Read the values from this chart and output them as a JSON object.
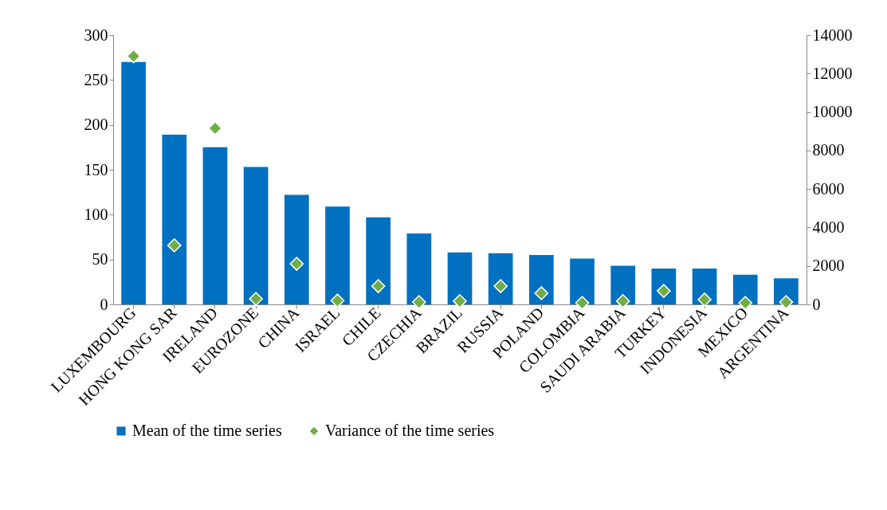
{
  "chart_data": {
    "type": "bar",
    "categories": [
      "LUXEMBOURG",
      "HONG KONG SAR",
      "IRELAND",
      "EUROZONE",
      "CHINA",
      "ISRAEL",
      "CHILE",
      "CZECHIA",
      "BRAZIL",
      "RUSSIA",
      "POLAND",
      "COLOMBIA",
      "SAUDI ARABIA",
      "TURKEY",
      "INDONESIA",
      "MEXICO",
      "ARGENTINA"
    ],
    "series": [
      {
        "name": "Mean of the time series",
        "color": "#0070c0",
        "values": [
          270,
          189,
          175,
          153,
          122,
          109,
          97,
          79,
          58,
          57,
          55,
          51,
          43,
          40,
          40,
          33,
          29
        ]
      },
      {
        "name": "Variance of the time series",
        "type": "scatter",
        "axis": "y2",
        "marker": "diamond",
        "color": "#70ad47",
        "values": [
          12900,
          3070,
          9150,
          290,
          2110,
          200,
          950,
          120,
          170,
          950,
          580,
          80,
          170,
          700,
          250,
          80,
          120
        ]
      }
    ],
    "ylim": [
      0,
      300
    ],
    "yticks": [
      0,
      50,
      100,
      150,
      200,
      250,
      300
    ],
    "y2lim": [
      0,
      14000
    ],
    "y2ticks": [
      0,
      2000,
      4000,
      6000,
      8000,
      10000,
      12000,
      14000
    ],
    "grid": false,
    "legend": "bottom"
  }
}
